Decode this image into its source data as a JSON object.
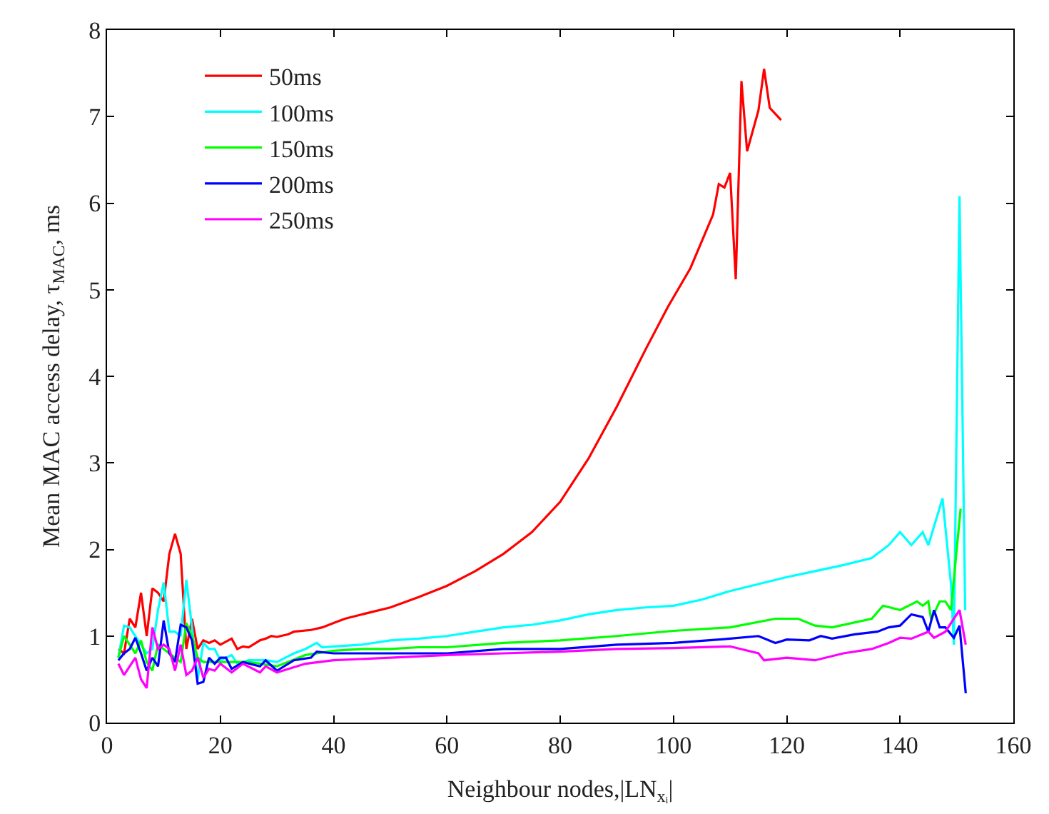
{
  "chart_data": {
    "type": "line",
    "xlabel": "Neighbour nodes,|LN$_{xᵢ}$|",
    "ylabel": "Mean MAC access delay, τ$_{MAC}$, ms",
    "xlim": [
      0,
      160
    ],
    "ylim": [
      0,
      8
    ],
    "xticks": [
      0,
      20,
      40,
      60,
      80,
      100,
      120,
      140,
      160
    ],
    "yticks": [
      0,
      1,
      2,
      3,
      4,
      5,
      6,
      7,
      8
    ],
    "legend": "top left",
    "marker": "none",
    "line_style": "solid",
    "series": [
      {
        "name": "50ms",
        "color": "#ff0000",
        "x": [
          2,
          3,
          4,
          5,
          6,
          7,
          8,
          9,
          10,
          11,
          12,
          13,
          14,
          15,
          16,
          17,
          18,
          19,
          20,
          22,
          23,
          24,
          25,
          27,
          28,
          29,
          30,
          32,
          33,
          36,
          38,
          40,
          42,
          45,
          50,
          55,
          60,
          65,
          70,
          75,
          80,
          85,
          90,
          95,
          99,
          103,
          107,
          108,
          109,
          110,
          111,
          112,
          113,
          115,
          116,
          117,
          119
        ],
        "values": [
          0.85,
          0.8,
          1.2,
          1.1,
          1.5,
          1.0,
          1.55,
          1.5,
          1.4,
          1.95,
          2.18,
          1.95,
          0.85,
          1.2,
          0.85,
          0.95,
          0.92,
          0.95,
          0.9,
          0.97,
          0.85,
          0.88,
          0.87,
          0.95,
          0.97,
          1.0,
          0.99,
          1.02,
          1.05,
          1.07,
          1.1,
          1.15,
          1.2,
          1.25,
          1.33,
          1.45,
          1.58,
          1.75,
          1.95,
          2.2,
          2.55,
          3.05,
          3.65,
          4.3,
          4.8,
          5.25,
          5.87,
          6.22,
          6.18,
          6.35,
          5.12,
          7.41,
          6.6,
          7.07,
          7.55,
          7.1,
          6.96
        ]
      },
      {
        "name": "100ms",
        "color": "#00ffff",
        "x": [
          2,
          3,
          4,
          5,
          6,
          7,
          8,
          9,
          10,
          11,
          12,
          13,
          14,
          15,
          16,
          17,
          18,
          19,
          20,
          22,
          23,
          25,
          28,
          30,
          33,
          35,
          37,
          38,
          40,
          45,
          50,
          55,
          60,
          65,
          70,
          75,
          80,
          85,
          90,
          95,
          100,
          105,
          110,
          115,
          120,
          125,
          130,
          135,
          138,
          140,
          142,
          144,
          145,
          147.5,
          149,
          149.5,
          150.5,
          151.5
        ],
        "values": [
          0.75,
          1.12,
          1.1,
          1.0,
          0.9,
          0.8,
          0.85,
          1.3,
          1.62,
          1.05,
          1.05,
          1.0,
          1.65,
          1.1,
          0.5,
          0.92,
          0.85,
          0.85,
          0.72,
          0.78,
          0.68,
          0.72,
          0.72,
          0.7,
          0.8,
          0.85,
          0.92,
          0.87,
          0.88,
          0.9,
          0.95,
          0.97,
          1.0,
          1.05,
          1.1,
          1.13,
          1.18,
          1.25,
          1.3,
          1.33,
          1.35,
          1.42,
          1.52,
          1.6,
          1.68,
          1.75,
          1.82,
          1.9,
          2.05,
          2.2,
          2.05,
          2.2,
          2.05,
          2.59,
          1.6,
          0.9,
          6.08,
          1.3
        ]
      },
      {
        "name": "150ms",
        "color": "#00ff00",
        "x": [
          2,
          3,
          4,
          5,
          6,
          7,
          8,
          9,
          10,
          12,
          13,
          14,
          15,
          16,
          17,
          20,
          25,
          30,
          35,
          40,
          45,
          50,
          55,
          60,
          70,
          80,
          90,
          100,
          110,
          118,
          122,
          125,
          128,
          135,
          137,
          140,
          143,
          144,
          145,
          145.5,
          147,
          148,
          149,
          150,
          150.7
        ],
        "values": [
          0.75,
          1.0,
          0.9,
          0.8,
          0.95,
          0.7,
          0.6,
          0.9,
          0.85,
          0.75,
          0.7,
          1.15,
          1.0,
          0.75,
          0.7,
          0.7,
          0.7,
          0.65,
          0.78,
          0.83,
          0.85,
          0.85,
          0.87,
          0.87,
          0.92,
          0.95,
          1.0,
          1.06,
          1.1,
          1.2,
          1.2,
          1.12,
          1.1,
          1.2,
          1.35,
          1.3,
          1.4,
          1.35,
          1.4,
          1.19,
          1.4,
          1.4,
          1.3,
          2.0,
          2.47
        ]
      },
      {
        "name": "200ms",
        "color": "#0000ff",
        "x": [
          2,
          3,
          4,
          5,
          6,
          7,
          8,
          9,
          10,
          11,
          12,
          13,
          14,
          15,
          16,
          17,
          18,
          19,
          20,
          21,
          22,
          24,
          27,
          28,
          30,
          33,
          36,
          37,
          40,
          50,
          60,
          70,
          80,
          90,
          100,
          110,
          115,
          118,
          120,
          124,
          126,
          128,
          132,
          136,
          138,
          140,
          142,
          144,
          145,
          146,
          147,
          148,
          149.5,
          150.5,
          151.6
        ],
        "values": [
          0.72,
          0.8,
          0.85,
          0.98,
          0.8,
          0.6,
          0.75,
          0.65,
          1.18,
          0.8,
          0.7,
          1.13,
          1.1,
          0.95,
          0.45,
          0.47,
          0.75,
          0.68,
          0.75,
          0.75,
          0.62,
          0.7,
          0.65,
          0.72,
          0.6,
          0.72,
          0.75,
          0.82,
          0.8,
          0.8,
          0.8,
          0.85,
          0.85,
          0.9,
          0.92,
          0.97,
          1.0,
          0.92,
          0.96,
          0.95,
          1.0,
          0.97,
          1.02,
          1.05,
          1.1,
          1.12,
          1.25,
          1.22,
          1.05,
          1.3,
          1.1,
          1.1,
          0.98,
          1.12,
          0.34
        ]
      },
      {
        "name": "250ms",
        "color": "#ff00ff",
        "x": [
          2,
          3,
          4,
          5,
          6,
          7,
          8,
          9,
          10,
          11,
          12,
          13,
          14,
          15,
          16,
          17,
          18,
          19,
          20,
          22,
          24,
          27,
          28,
          30,
          35,
          40,
          50,
          60,
          70,
          80,
          90,
          100,
          110,
          115,
          116,
          120,
          125,
          130,
          135,
          138,
          140,
          142,
          145,
          146,
          148,
          150.5,
          151.6
        ],
        "values": [
          0.68,
          0.55,
          0.65,
          0.75,
          0.5,
          0.4,
          1.1,
          0.85,
          0.9,
          0.85,
          0.6,
          0.9,
          0.55,
          0.6,
          0.75,
          0.52,
          0.62,
          0.6,
          0.68,
          0.58,
          0.68,
          0.58,
          0.65,
          0.58,
          0.68,
          0.72,
          0.75,
          0.78,
          0.8,
          0.82,
          0.85,
          0.86,
          0.88,
          0.8,
          0.72,
          0.75,
          0.72,
          0.8,
          0.85,
          0.92,
          0.98,
          0.97,
          1.05,
          0.98,
          1.05,
          1.3,
          0.9
        ]
      }
    ]
  }
}
